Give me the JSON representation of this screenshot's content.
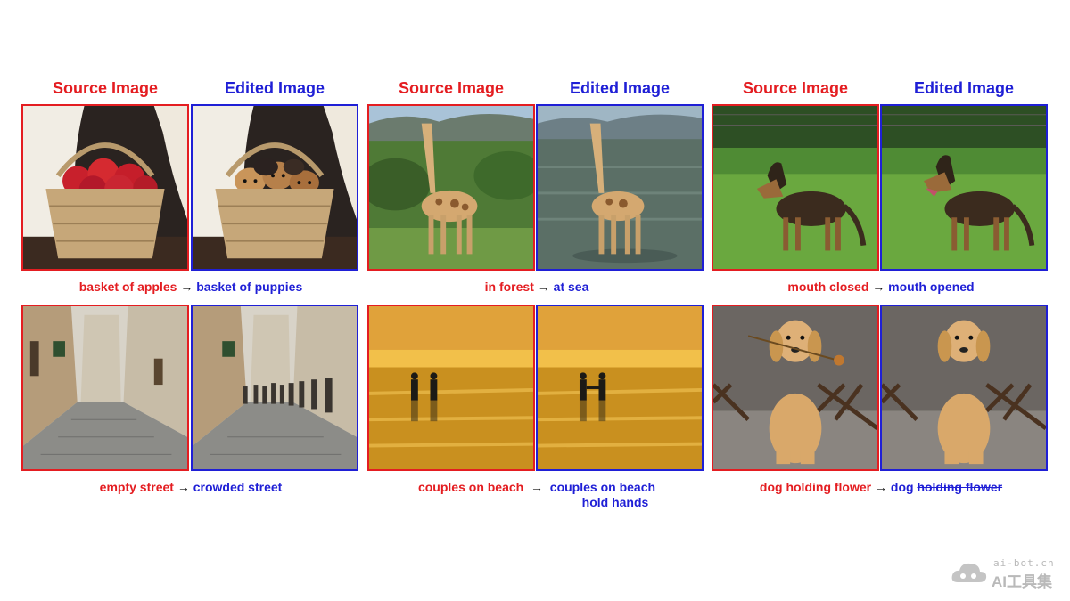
{
  "headers": {
    "source": "Source Image",
    "edited": "Edited Image"
  },
  "captions": {
    "apples": {
      "source": "basket of apples",
      "arrow": "→",
      "edited": "basket of puppies"
    },
    "giraffe": {
      "source": "in forest",
      "arrow": "→",
      "edited": "at sea"
    },
    "dog_mouth": {
      "source": "mouth closed",
      "arrow": "→",
      "edited": "mouth opened"
    },
    "street": {
      "source": "empty street",
      "arrow": "→",
      "edited": "crowded street"
    },
    "couples": {
      "source": "couples on beach",
      "arrow": "→",
      "edited_line1": "couples on beach",
      "edited_line2": "hold hands"
    },
    "flower": {
      "source": "dog holding flower",
      "arrow": "→",
      "edited": "dog",
      "edited_struck": "holding flower"
    }
  },
  "watermark": {
    "line1": "ai-bot.cn",
    "line2": "AI工具集"
  },
  "colors": {
    "source_red": "#e41d21",
    "edited_blue": "#1f1fd6"
  }
}
